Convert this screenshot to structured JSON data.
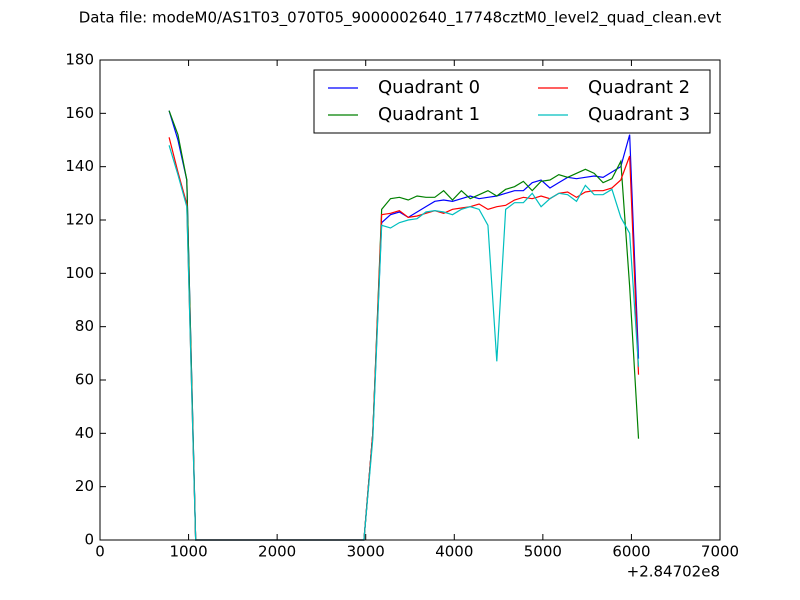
{
  "chart_data": {
    "type": "line",
    "title": "Data file: modeM0/AS1T03_070T05_9000002640_17748cztM0_level2_quad_clean.evt",
    "x_offset_label": "+2.84702e8",
    "x": [
      780,
      880,
      980,
      1080,
      1180,
      1280,
      1380,
      1480,
      1580,
      1680,
      1780,
      1880,
      1980,
      2080,
      2180,
      2280,
      2380,
      2480,
      2580,
      2680,
      2780,
      2880,
      2980,
      3080,
      3180,
      3280,
      3380,
      3480,
      3580,
      3680,
      3780,
      3880,
      3980,
      4080,
      4180,
      4280,
      4380,
      4480,
      4580,
      4680,
      4780,
      4880,
      4980,
      5080,
      5180,
      5280,
      5380,
      5480,
      5580,
      5680,
      5780,
      5880,
      5980,
      6080
    ],
    "series": [
      {
        "name": "Quadrant 0",
        "color": "#0000ff",
        "values": [
          161,
          150,
          135,
          0,
          0,
          0,
          0,
          0,
          0,
          0,
          0,
          0,
          0,
          0,
          0,
          0,
          0,
          0,
          0,
          0,
          0,
          0,
          0,
          40,
          119,
          122,
          123,
          121,
          123,
          125,
          127,
          127.5,
          127,
          128,
          129,
          128,
          128.5,
          129,
          130,
          131,
          131,
          134,
          135,
          132,
          134,
          136,
          135.5,
          136,
          136.5,
          136,
          138,
          140,
          152,
          68
        ]
      },
      {
        "name": "Quadrant 1",
        "color": "#008000",
        "values": [
          161,
          152,
          135,
          0,
          0,
          0,
          0,
          0,
          0,
          0,
          0,
          0,
          0,
          0,
          0,
          0,
          0,
          0,
          0,
          0,
          0,
          0,
          0,
          40,
          124,
          128,
          128.5,
          127.5,
          129,
          128.5,
          128.5,
          131,
          127.5,
          131,
          128,
          129.5,
          131,
          129,
          131.5,
          132.5,
          134.5,
          131,
          134.5,
          135,
          137,
          136,
          137.5,
          139,
          137.5,
          134,
          135.5,
          142,
          95,
          38
        ]
      },
      {
        "name": "Quadrant 2",
        "color": "#ff0000",
        "values": [
          151,
          138,
          126,
          0,
          0,
          0,
          0,
          0,
          0,
          0,
          0,
          0,
          0,
          0,
          0,
          0,
          0,
          0,
          0,
          0,
          0,
          0,
          0,
          40,
          122,
          122.5,
          123.5,
          121,
          121.5,
          122.5,
          123.5,
          122.5,
          124,
          124.5,
          125,
          126,
          124,
          125,
          125.5,
          127.5,
          128.5,
          128,
          129,
          128,
          130,
          130.5,
          128.5,
          130.5,
          131,
          131,
          132,
          135,
          144,
          62
        ]
      },
      {
        "name": "Quadrant 3",
        "color": "#00bfbf",
        "values": [
          148,
          137,
          125,
          0,
          0,
          0,
          0,
          0,
          0,
          0,
          0,
          0,
          0,
          0,
          0,
          0,
          0,
          0,
          0,
          0,
          0,
          0,
          0,
          38,
          118,
          117,
          119,
          120,
          120.5,
          123,
          123.5,
          123,
          122,
          124,
          125,
          124,
          118,
          67,
          124,
          126.5,
          126.5,
          130,
          125,
          128,
          130,
          129.5,
          127,
          133,
          129.5,
          129.5,
          131.5,
          121,
          115,
          65
        ]
      }
    ],
    "xlim": [
      0,
      7000
    ],
    "xticks": [
      0,
      1000,
      2000,
      3000,
      4000,
      5000,
      6000,
      7000
    ],
    "ylim": [
      0,
      180
    ],
    "yticks": [
      0,
      20,
      40,
      60,
      80,
      100,
      120,
      140,
      160,
      180
    ],
    "legend": "upper right",
    "legend_columns": 2
  }
}
